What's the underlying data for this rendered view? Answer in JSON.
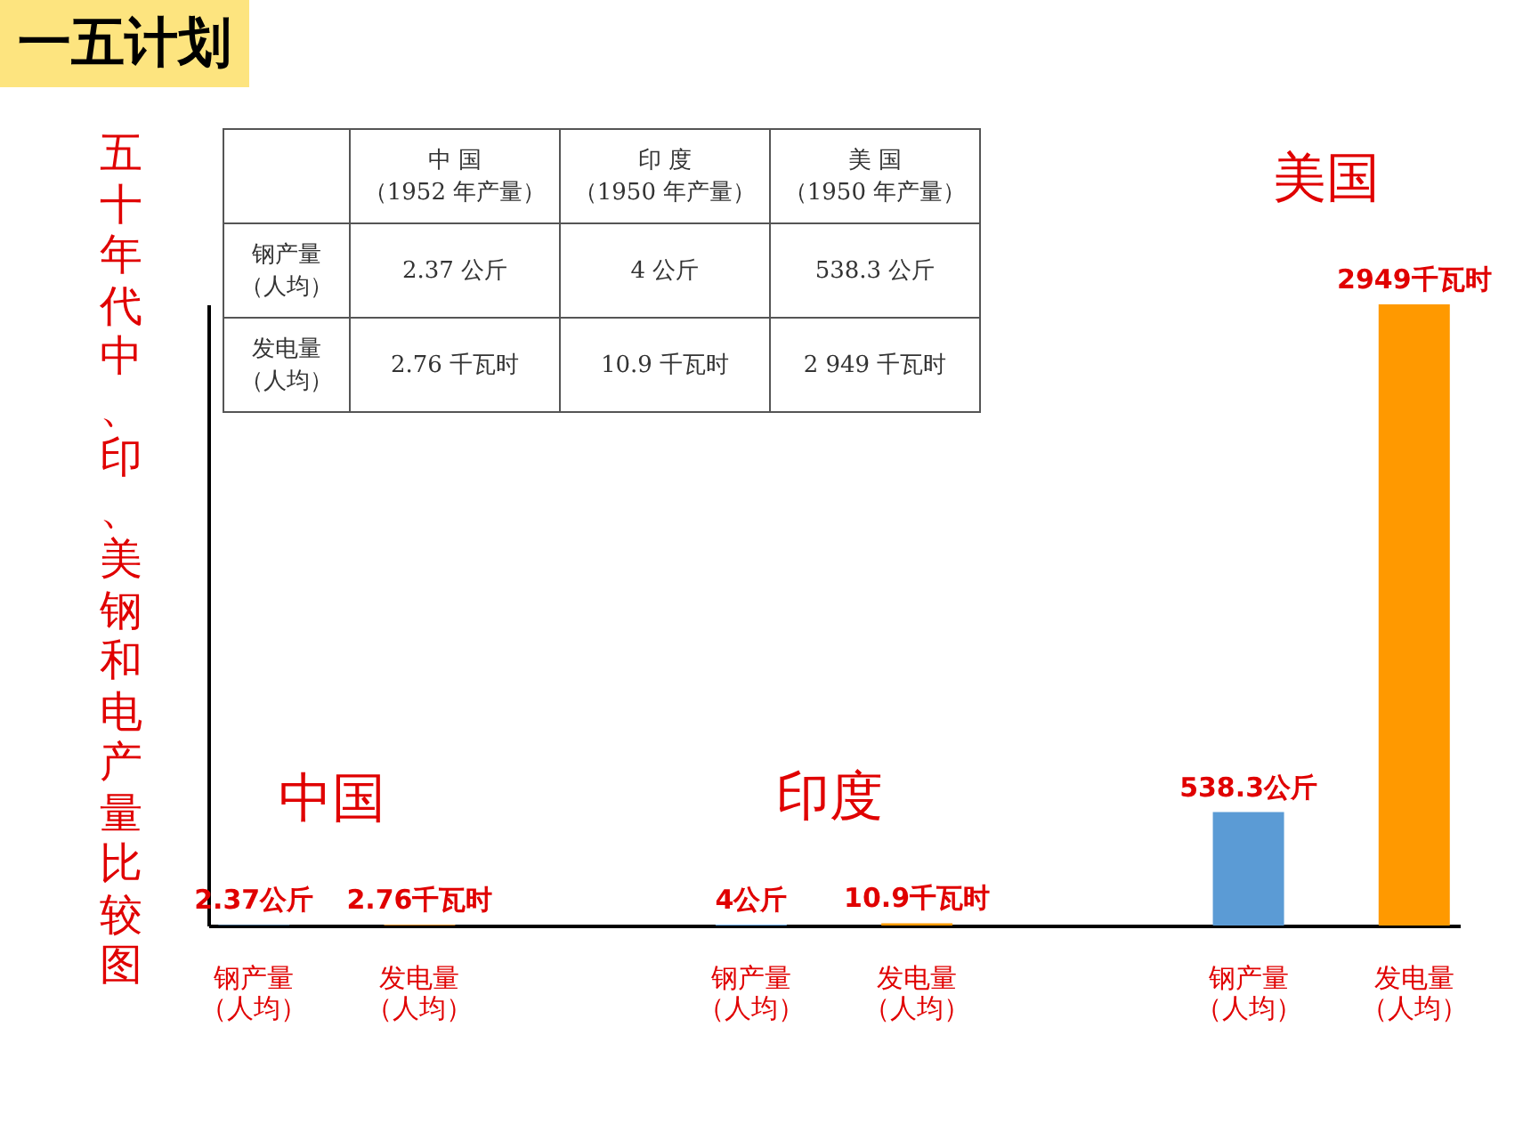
{
  "chart_data": {
    "type": "bar",
    "title": "一五计划",
    "ylabel": "五十年代中、印、美钢和电产量比较图",
    "categories": [
      "钢产量（人均）",
      "发电量（人均）",
      null,
      "钢产量（人均）",
      "发电量（人均）",
      null,
      "钢产量（人均）",
      "发电量（人均）"
    ],
    "values": [
      2.37,
      2.76,
      null,
      4,
      10.9,
      null,
      538.3,
      2949
    ],
    "colors": [
      "#5b9bd5",
      "#ff9900",
      "#5b9bd5",
      "#5b9bd5",
      "#ff9900",
      "#5b9bd5",
      "#5b9bd5",
      "#ff9900"
    ],
    "value_labels": [
      "2.37公斤",
      "2.76千瓦时",
      null,
      "4公斤",
      "10.9千瓦时",
      null,
      "538.3公斤",
      "2949千瓦时"
    ],
    "annotations": [
      "中国",
      "印度",
      "美国",
      "中 国（1952 年产量）",
      "印 度（1950 年产量）",
      "美 国（1950 年产量）",
      "钢产量（人均）",
      "2.37 公斤",
      "4 公斤",
      "538.3 公斤",
      "发电量（人均）",
      "2.76 千瓦时",
      "10.9 千瓦时",
      "2 949 千瓦时"
    ],
    "grid": false
  }
}
